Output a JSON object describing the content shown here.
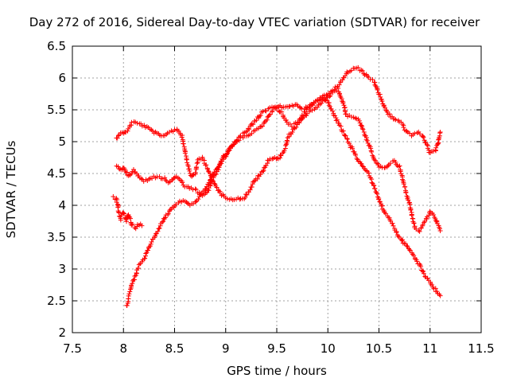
{
  "chart_data": {
    "type": "scatter",
    "title": "Day 272 of 2016, Sidereal Day-to-day VTEC variation (SDTVAR) for receiver",
    "xlabel": "GPS time / hours",
    "ylabel": "SDTVAR / TECUs",
    "xlim": [
      7.5,
      11.5
    ],
    "ylim": [
      2,
      6.5
    ],
    "xticks": [
      "7.5",
      "8",
      "8.5",
      "9",
      "9.5",
      "10",
      "10.5",
      "11",
      "11.5"
    ],
    "yticks": [
      "2",
      "2.5",
      "3",
      "3.5",
      "4",
      "4.5",
      "5",
      "5.5",
      "6",
      "6.5"
    ],
    "grid": true,
    "marker": "+",
    "color": "#ff0000",
    "series": [
      {
        "points": [
          [
            7.93,
            5.05
          ],
          [
            7.97,
            5.15
          ],
          [
            8.0,
            5.12
          ],
          [
            8.05,
            5.2
          ],
          [
            8.08,
            5.3
          ],
          [
            8.12,
            5.3
          ],
          [
            8.2,
            5.25
          ],
          [
            8.3,
            5.15
          ],
          [
            8.37,
            5.08
          ],
          [
            8.45,
            5.15
          ],
          [
            8.52,
            5.2
          ],
          [
            8.57,
            5.1
          ],
          [
            8.6,
            4.9
          ],
          [
            8.62,
            4.7
          ],
          [
            8.65,
            4.5
          ],
          [
            8.67,
            4.45
          ],
          [
            8.7,
            4.5
          ],
          [
            8.73,
            4.7
          ],
          [
            8.77,
            4.75
          ],
          [
            8.82,
            4.6
          ],
          [
            8.87,
            4.4
          ],
          [
            8.92,
            4.25
          ],
          [
            8.97,
            4.15
          ],
          [
            9.05,
            4.1
          ],
          [
            9.12,
            4.1
          ],
          [
            9.18,
            4.12
          ],
          [
            9.22,
            4.2
          ],
          [
            9.27,
            4.35
          ],
          [
            9.32,
            4.45
          ],
          [
            9.37,
            4.55
          ],
          [
            9.42,
            4.72
          ],
          [
            9.48,
            4.75
          ],
          [
            9.52,
            4.72
          ],
          [
            9.58,
            4.9
          ],
          [
            9.62,
            5.1
          ],
          [
            9.67,
            5.2
          ],
          [
            9.72,
            5.3
          ],
          [
            9.77,
            5.38
          ],
          [
            9.8,
            5.45
          ],
          [
            9.85,
            5.5
          ],
          [
            9.9,
            5.55
          ],
          [
            9.95,
            5.62
          ],
          [
            10.0,
            5.7
          ],
          [
            10.05,
            5.78
          ],
          [
            10.1,
            5.82
          ],
          [
            10.15,
            5.6
          ],
          [
            10.18,
            5.42
          ],
          [
            10.23,
            5.38
          ],
          [
            10.3,
            5.35
          ],
          [
            10.35,
            5.15
          ],
          [
            10.4,
            4.95
          ],
          [
            10.45,
            4.75
          ],
          [
            10.5,
            4.6
          ],
          [
            10.55,
            4.58
          ],
          [
            10.6,
            4.65
          ],
          [
            10.65,
            4.7
          ],
          [
            10.7,
            4.6
          ],
          [
            10.75,
            4.3
          ],
          [
            10.8,
            4.0
          ],
          [
            10.85,
            3.65
          ],
          [
            10.9,
            3.6
          ],
          [
            10.95,
            3.75
          ],
          [
            11.0,
            3.9
          ],
          [
            11.05,
            3.8
          ],
          [
            11.1,
            3.6
          ]
        ]
      },
      {
        "points": [
          [
            7.93,
            4.62
          ],
          [
            7.97,
            4.55
          ],
          [
            8.0,
            4.6
          ],
          [
            8.05,
            4.45
          ],
          [
            8.1,
            4.55
          ],
          [
            8.15,
            4.45
          ],
          [
            8.2,
            4.38
          ],
          [
            8.3,
            4.45
          ],
          [
            8.4,
            4.42
          ],
          [
            8.45,
            4.35
          ],
          [
            8.5,
            4.45
          ],
          [
            8.55,
            4.4
          ],
          [
            8.6,
            4.3
          ],
          [
            8.7,
            4.25
          ],
          [
            8.77,
            4.15
          ],
          [
            8.82,
            4.2
          ],
          [
            8.87,
            4.4
          ],
          [
            8.92,
            4.55
          ],
          [
            8.97,
            4.75
          ],
          [
            9.0,
            4.8
          ],
          [
            9.05,
            4.9
          ],
          [
            9.1,
            5.0
          ],
          [
            9.15,
            5.05
          ],
          [
            9.2,
            5.1
          ],
          [
            9.27,
            5.15
          ],
          [
            9.32,
            5.2
          ],
          [
            9.37,
            5.28
          ],
          [
            9.42,
            5.4
          ],
          [
            9.47,
            5.52
          ],
          [
            9.52,
            5.55
          ],
          [
            9.6,
            5.55
          ],
          [
            9.68,
            5.58
          ],
          [
            9.75,
            5.52
          ],
          [
            9.82,
            5.55
          ],
          [
            9.88,
            5.62
          ],
          [
            9.95,
            5.72
          ],
          [
            10.0,
            5.75
          ],
          [
            10.05,
            5.8
          ],
          [
            10.1,
            5.88
          ],
          [
            10.15,
            6.0
          ],
          [
            10.2,
            6.1
          ],
          [
            10.25,
            6.15
          ],
          [
            10.3,
            6.15
          ],
          [
            10.35,
            6.08
          ],
          [
            10.4,
            6.0
          ],
          [
            10.45,
            5.95
          ],
          [
            10.5,
            5.75
          ],
          [
            10.55,
            5.55
          ],
          [
            10.6,
            5.42
          ],
          [
            10.65,
            5.35
          ],
          [
            10.72,
            5.3
          ],
          [
            10.77,
            5.15
          ],
          [
            10.82,
            5.1
          ],
          [
            10.87,
            5.15
          ],
          [
            10.92,
            5.1
          ],
          [
            10.97,
            4.95
          ],
          [
            11.0,
            4.82
          ],
          [
            11.05,
            4.85
          ],
          [
            11.08,
            5.0
          ],
          [
            11.1,
            5.15
          ]
        ]
      },
      {
        "points": [
          [
            7.9,
            4.12
          ],
          [
            7.93,
            4.1
          ],
          [
            7.95,
            3.95
          ],
          [
            7.97,
            3.78
          ],
          [
            8.0,
            3.9
          ],
          [
            8.03,
            3.75
          ],
          [
            8.05,
            3.85
          ],
          [
            8.08,
            3.7
          ],
          [
            8.12,
            3.65
          ],
          [
            8.15,
            3.7
          ],
          [
            8.18,
            3.68
          ]
        ]
      },
      {
        "points": [
          [
            8.03,
            2.42
          ],
          [
            8.05,
            2.55
          ],
          [
            8.08,
            2.75
          ],
          [
            8.12,
            2.9
          ],
          [
            8.15,
            3.05
          ],
          [
            8.2,
            3.15
          ],
          [
            8.25,
            3.35
          ],
          [
            8.3,
            3.5
          ],
          [
            8.35,
            3.65
          ],
          [
            8.4,
            3.8
          ],
          [
            8.45,
            3.9
          ],
          [
            8.5,
            4.0
          ],
          [
            8.55,
            4.05
          ],
          [
            8.6,
            4.08
          ],
          [
            8.65,
            4.0
          ],
          [
            8.7,
            4.05
          ],
          [
            8.75,
            4.15
          ],
          [
            8.8,
            4.25
          ],
          [
            8.85,
            4.4
          ],
          [
            8.9,
            4.55
          ],
          [
            8.95,
            4.65
          ],
          [
            9.0,
            4.78
          ],
          [
            9.05,
            4.9
          ],
          [
            9.1,
            5.0
          ],
          [
            9.15,
            5.1
          ],
          [
            9.2,
            5.15
          ],
          [
            9.25,
            5.25
          ],
          [
            9.3,
            5.35
          ],
          [
            9.35,
            5.45
          ],
          [
            9.4,
            5.5
          ],
          [
            9.45,
            5.55
          ],
          [
            9.5,
            5.52
          ],
          [
            9.55,
            5.45
          ],
          [
            9.6,
            5.3
          ],
          [
            9.65,
            5.25
          ],
          [
            9.7,
            5.3
          ],
          [
            9.75,
            5.4
          ],
          [
            9.8,
            5.52
          ],
          [
            9.85,
            5.6
          ],
          [
            9.9,
            5.65
          ],
          [
            9.95,
            5.7
          ],
          [
            10.0,
            5.62
          ],
          [
            10.05,
            5.45
          ],
          [
            10.1,
            5.3
          ],
          [
            10.15,
            5.15
          ],
          [
            10.2,
            5.0
          ],
          [
            10.25,
            4.85
          ],
          [
            10.3,
            4.7
          ],
          [
            10.35,
            4.6
          ],
          [
            10.4,
            4.5
          ],
          [
            10.45,
            4.3
          ],
          [
            10.5,
            4.1
          ],
          [
            10.55,
            3.9
          ],
          [
            10.6,
            3.8
          ],
          [
            10.65,
            3.65
          ],
          [
            10.7,
            3.5
          ],
          [
            10.75,
            3.4
          ],
          [
            10.8,
            3.3
          ],
          [
            10.85,
            3.18
          ],
          [
            10.9,
            3.05
          ],
          [
            10.95,
            2.9
          ],
          [
            11.0,
            2.8
          ],
          [
            11.05,
            2.68
          ],
          [
            11.1,
            2.58
          ]
        ]
      }
    ]
  }
}
